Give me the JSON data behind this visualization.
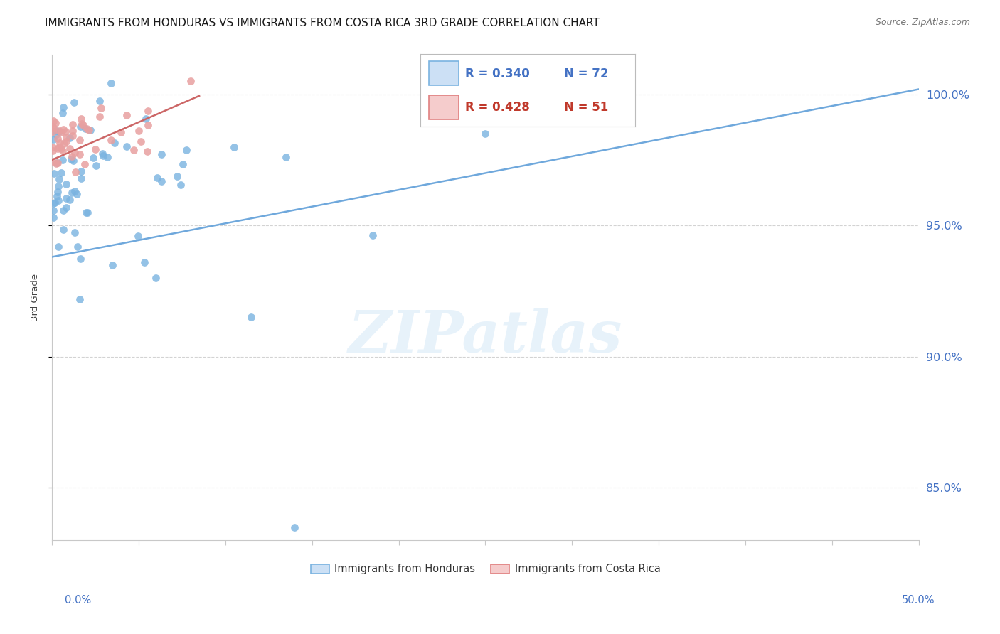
{
  "title": "IMMIGRANTS FROM HONDURAS VS IMMIGRANTS FROM COSTA RICA 3RD GRADE CORRELATION CHART",
  "source": "Source: ZipAtlas.com",
  "ylabel": "3rd Grade",
  "xlim": [
    0.0,
    50.0
  ],
  "ylim": [
    83.0,
    101.5
  ],
  "ytick_positions": [
    85.0,
    90.0,
    95.0,
    100.0
  ],
  "ytick_labels": [
    "85.0%",
    "90.0%",
    "95.0%",
    "100.0%"
  ],
  "legend_line1": "R = 0.340   N = 72",
  "legend_line2": "R = 0.428   N = 51",
  "color_honduras": "#7ab3e0",
  "color_costa_rica": "#e8a0a0",
  "color_line_honduras": "#6fa8dc",
  "color_line_costa_rica": "#cc6666",
  "color_axis_text": "#4472c4",
  "color_grid": "#c8c8c8",
  "background_color": "#ffffff",
  "watermark_text": "ZIPatlas",
  "watermark_color": "#d8eaf8"
}
